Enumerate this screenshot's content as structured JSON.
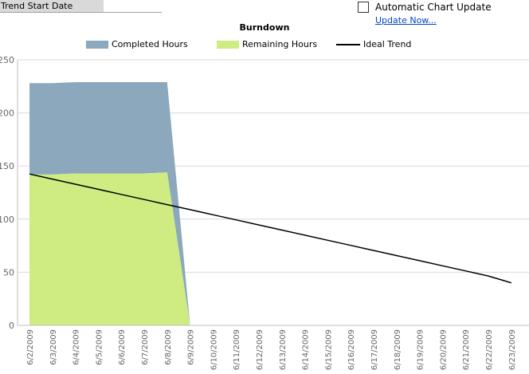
{
  "form": {
    "trend_start_label": "Trend Start Date",
    "trend_start_value": "",
    "auto_update_label": "Automatic Chart Update",
    "update_now_label": "Update Now..."
  },
  "chart_data": {
    "type": "area",
    "title": "Burndown",
    "legend_position": "top",
    "grid": true,
    "ylim": [
      0,
      250
    ],
    "yticks": [
      0,
      50,
      100,
      150,
      200,
      250
    ],
    "x": [
      "6/2/2009",
      "6/3/2009",
      "6/4/2009",
      "6/5/2009",
      "6/6/2009",
      "6/7/2009",
      "6/8/2009",
      "6/9/2009",
      "6/10/2009",
      "6/11/2009",
      "6/12/2009",
      "6/13/2009",
      "6/14/2009",
      "6/15/2009",
      "6/16/2009",
      "6/17/2009",
      "6/18/2009",
      "6/19/2009",
      "6/20/2009",
      "6/21/2009",
      "6/22/2009",
      "6/23/2009"
    ],
    "series": [
      {
        "name": "Completed Hours",
        "kind": "stacked-area",
        "color": "#8ba8bc",
        "values": [
          86,
          86,
          86,
          86,
          86,
          86,
          85,
          0,
          null,
          null,
          null,
          null,
          null,
          null,
          null,
          null,
          null,
          null,
          null,
          null,
          null,
          null
        ]
      },
      {
        "name": "Remaining Hours",
        "kind": "stacked-area",
        "color": "#ceec82",
        "values": [
          142,
          142,
          143,
          143,
          143,
          143,
          144,
          0,
          null,
          null,
          null,
          null,
          null,
          null,
          null,
          null,
          null,
          null,
          null,
          null,
          null,
          null
        ]
      },
      {
        "name": "Ideal Trend",
        "kind": "line",
        "color": "#000000",
        "values": [
          142.5,
          137.7,
          132.9,
          128.1,
          123.3,
          118.5,
          113.7,
          108.9,
          104.1,
          99.3,
          94.5,
          89.7,
          84.9,
          80.1,
          75.3,
          70.5,
          65.7,
          60.9,
          56.1,
          51.3,
          46.5,
          40.0
        ]
      }
    ]
  }
}
